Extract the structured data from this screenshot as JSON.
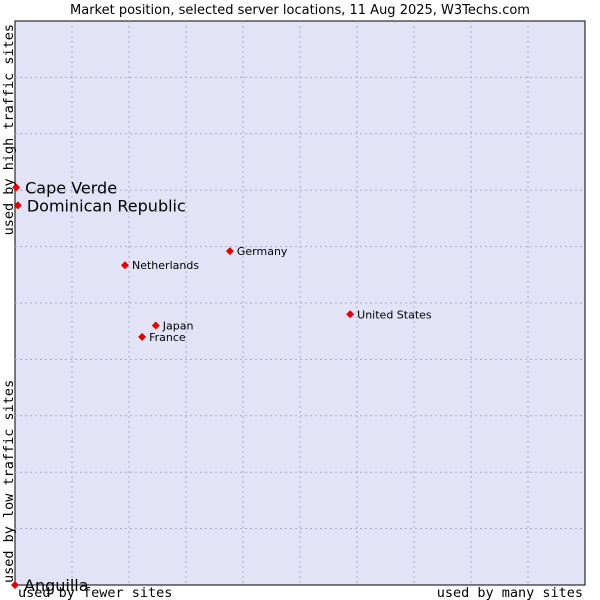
{
  "chart_data": {
    "type": "scatter",
    "title": "Market position, selected server locations, 11 Aug 2025, W3Techs.com",
    "xlabel_left": "used by fewer sites",
    "xlabel_right": "used by many sites",
    "ylabel_bottom": "used by low traffic sites",
    "ylabel_top": "used by high traffic sites",
    "xlim": [
      0,
      10
    ],
    "ylim": [
      0,
      10
    ],
    "grid": true,
    "plot_background": "#e3e3f8",
    "point_color": "#e00000",
    "points": [
      {
        "label": "Cape Verde",
        "x": 0.02,
        "y": 7.05,
        "size": "large"
      },
      {
        "label": "Dominican Republic",
        "x": 0.05,
        "y": 6.73,
        "size": "large"
      },
      {
        "label": "Anguilla",
        "x": 0.0,
        "y": 0.0,
        "size": "large"
      },
      {
        "label": "Germany",
        "x": 3.77,
        "y": 5.92,
        "size": "small"
      },
      {
        "label": "Netherlands",
        "x": 1.93,
        "y": 5.67,
        "size": "small"
      },
      {
        "label": "United States",
        "x": 5.88,
        "y": 4.8,
        "size": "small"
      },
      {
        "label": "Japan",
        "x": 2.47,
        "y": 4.6,
        "size": "small"
      },
      {
        "label": "France",
        "x": 2.23,
        "y": 4.4,
        "size": "small"
      }
    ]
  }
}
